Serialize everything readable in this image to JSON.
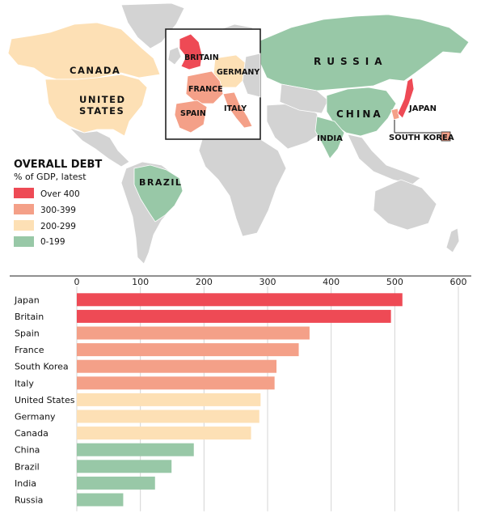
{
  "colors": {
    "over_400": "#ee4a55",
    "range_300_399": "#f4a088",
    "range_200_299": "#fde0b5",
    "range_0_199": "#98c8a7",
    "land": "#d3d3d3"
  },
  "map": {
    "countries": {
      "canada": "CANADA",
      "united_states_1": "UNITED",
      "united_states_2": "STATES",
      "brazil": "BRAZIL",
      "russia": "RUSSIA",
      "china": "CHINA",
      "india": "INDIA",
      "japan": "JAPAN",
      "south_korea": "SOUTH KOREA",
      "britain": "BRITAIN",
      "germany": "GERMANY",
      "france": "FRANCE",
      "spain": "SPAIN",
      "italy": "ITALY"
    },
    "legend": {
      "title": "OVERALL DEBT",
      "subtitle": "% of GDP, latest",
      "items": [
        "Over 400",
        "300-399",
        "200-299",
        "0-199"
      ]
    }
  },
  "chart_data": {
    "type": "bar",
    "orientation": "horizontal",
    "categories": [
      "Japan",
      "Britain",
      "Spain",
      "France",
      "South Korea",
      "Italy",
      "United States",
      "Germany",
      "Canada",
      "China",
      "Brazil",
      "India",
      "Russia"
    ],
    "values": [
      512,
      494,
      366,
      349,
      314,
      311,
      289,
      287,
      274,
      184,
      149,
      123,
      73
    ],
    "bands": [
      "over_400",
      "over_400",
      "range_300_399",
      "range_300_399",
      "range_300_399",
      "range_300_399",
      "range_200_299",
      "range_200_299",
      "range_200_299",
      "range_0_199",
      "range_0_199",
      "range_0_199",
      "range_0_199"
    ],
    "xlim": [
      0,
      600
    ],
    "ticks": [
      0,
      100,
      200,
      300,
      400,
      500,
      600
    ],
    "grid": true
  }
}
